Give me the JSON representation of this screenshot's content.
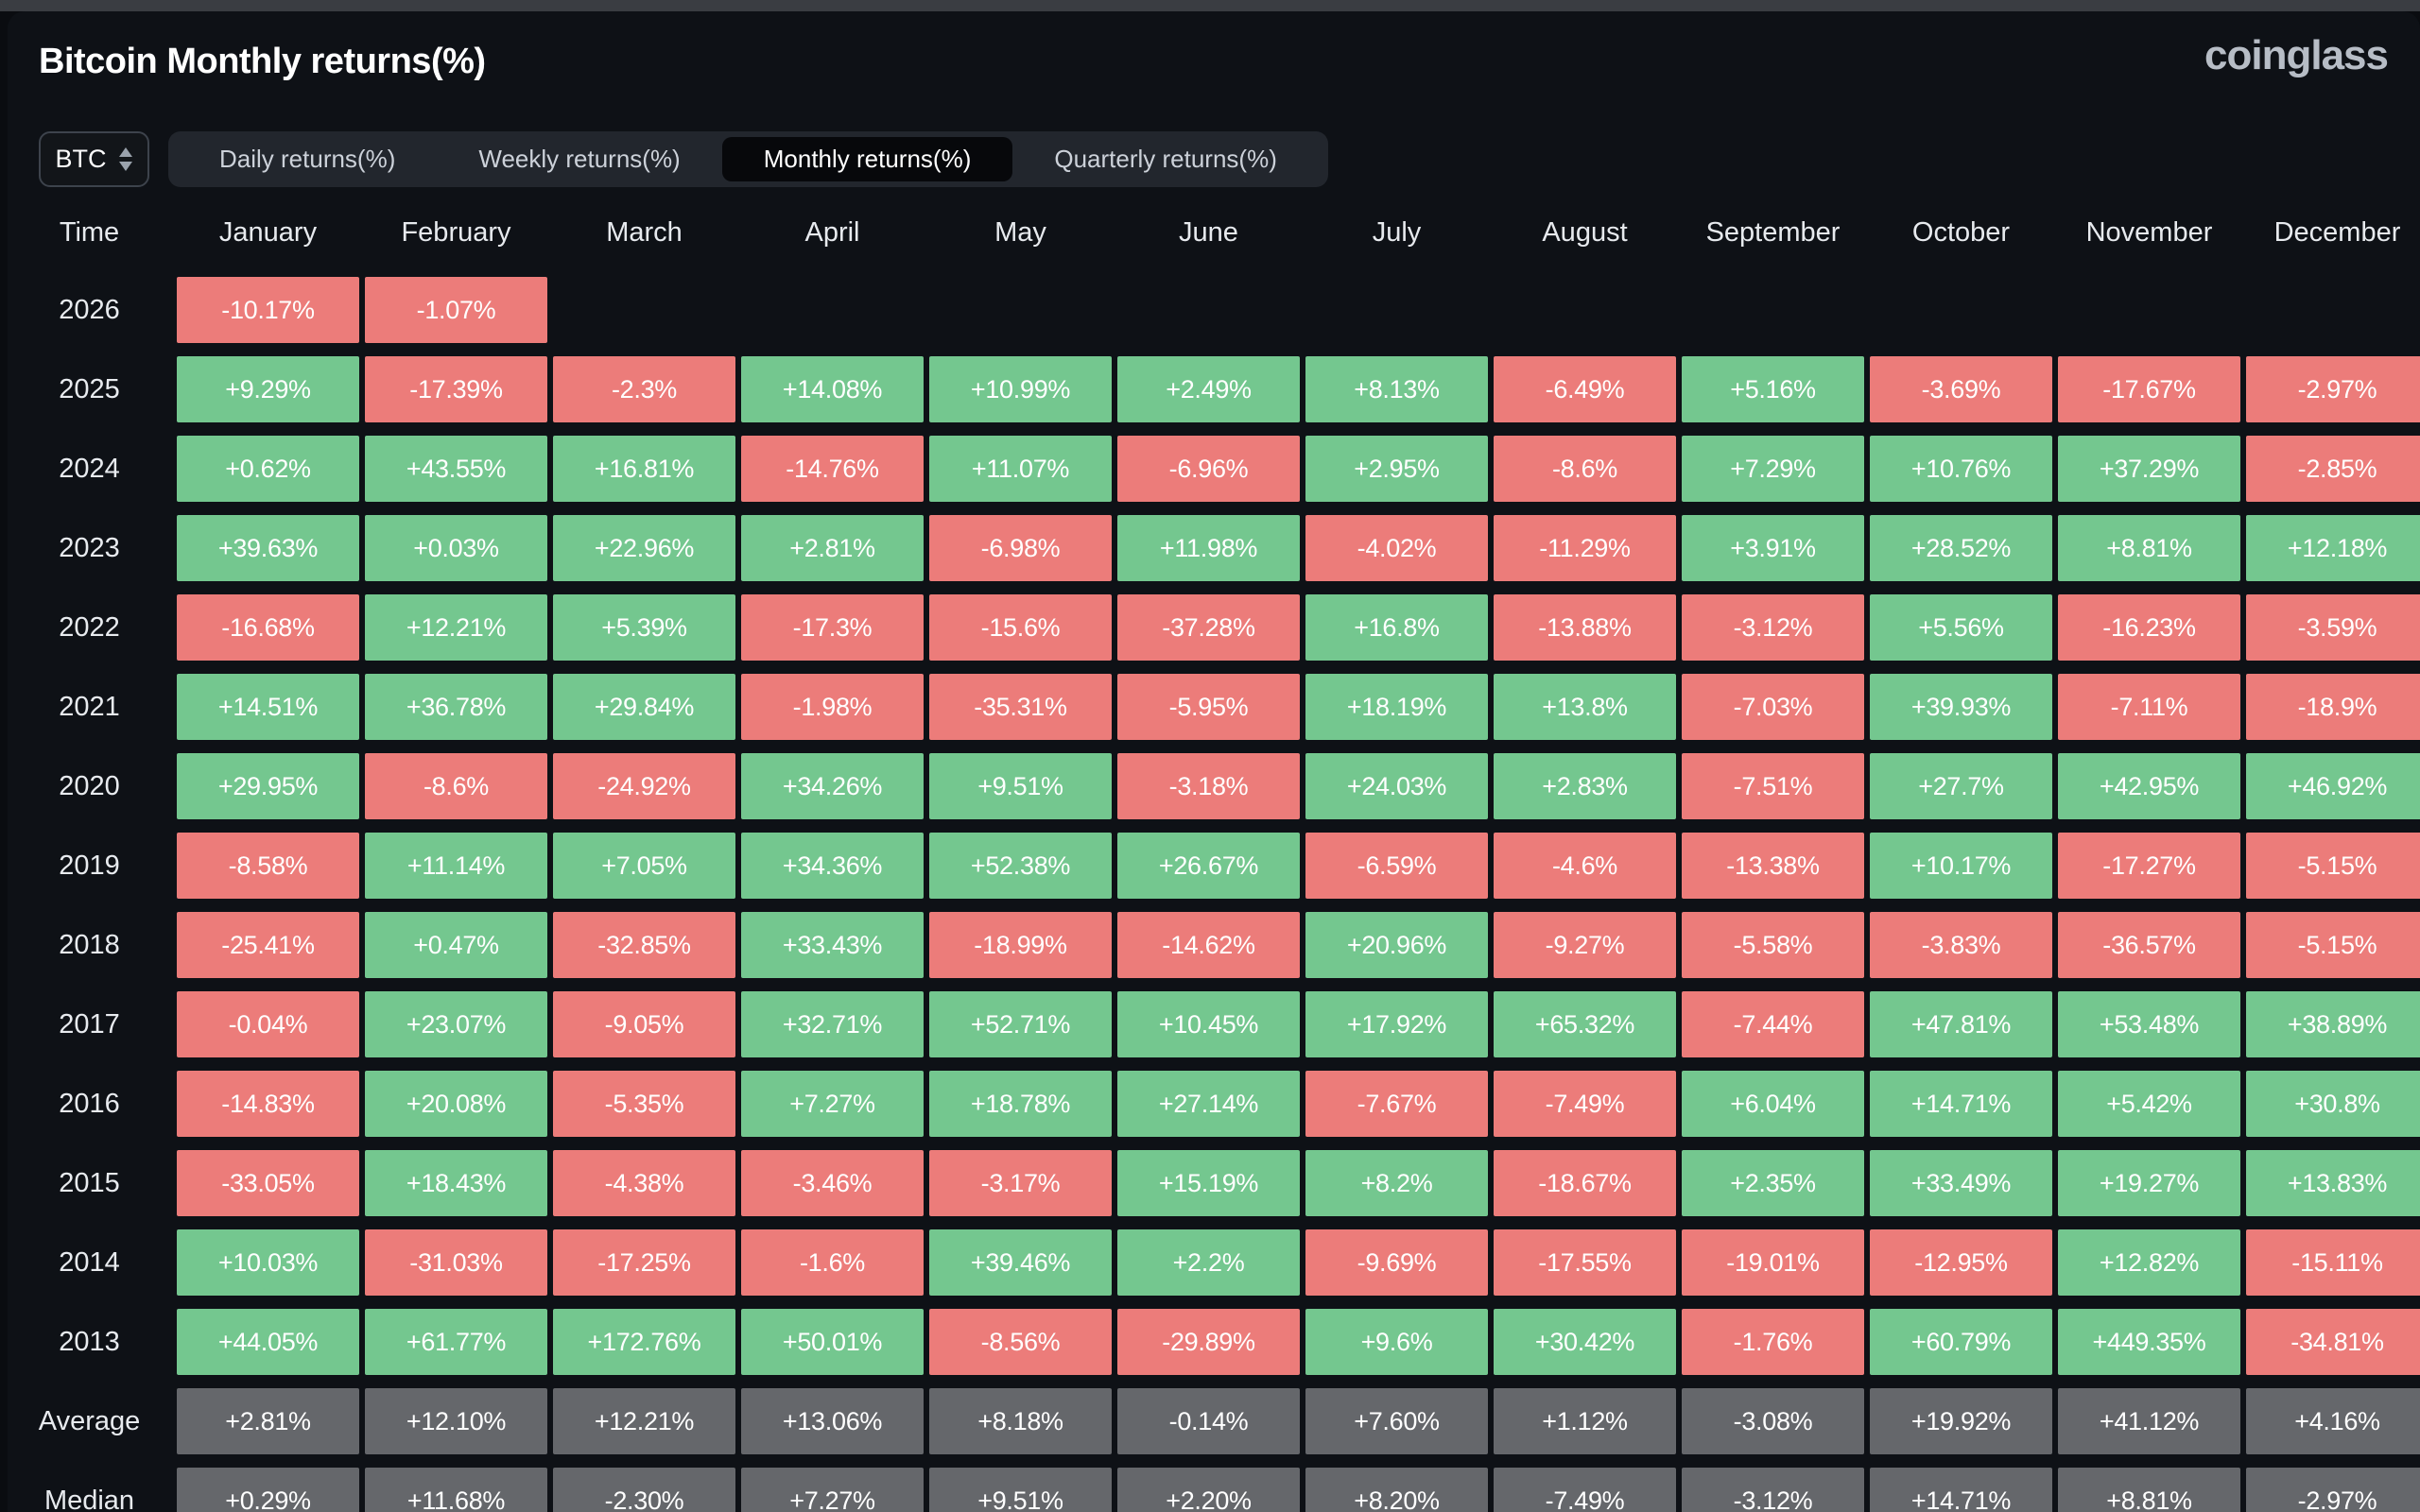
{
  "header": {
    "title": "Bitcoin Monthly returns(%)",
    "logo": "coinglass"
  },
  "controls": {
    "symbol": "BTC",
    "symbol_icon": "updown-chevron",
    "tabs": [
      {
        "label": "Daily returns(%)",
        "selected": false
      },
      {
        "label": "Weekly returns(%)",
        "selected": false
      },
      {
        "label": "Monthly returns(%)",
        "selected": true
      },
      {
        "label": "Quarterly returns(%)",
        "selected": false
      }
    ]
  },
  "colors": {
    "positive": "#74c78f",
    "negative": "#ec7c7a",
    "summary": "#65676b",
    "background": "#0e1116"
  },
  "table": {
    "columns": [
      "Time",
      "January",
      "February",
      "March",
      "April",
      "May",
      "June",
      "July",
      "August",
      "September",
      "October",
      "November",
      "December"
    ],
    "rows": [
      {
        "label": "2026",
        "type": "year",
        "values": [
          "-10.17%",
          "-1.07%"
        ]
      },
      {
        "label": "2025",
        "type": "year",
        "values": [
          "+9.29%",
          "-17.39%",
          "-2.3%",
          "+14.08%",
          "+10.99%",
          "+2.49%",
          "+8.13%",
          "-6.49%",
          "+5.16%",
          "-3.69%",
          "-17.67%",
          "-2.97%"
        ]
      },
      {
        "label": "2024",
        "type": "year",
        "values": [
          "+0.62%",
          "+43.55%",
          "+16.81%",
          "-14.76%",
          "+11.07%",
          "-6.96%",
          "+2.95%",
          "-8.6%",
          "+7.29%",
          "+10.76%",
          "+37.29%",
          "-2.85%"
        ]
      },
      {
        "label": "2023",
        "type": "year",
        "values": [
          "+39.63%",
          "+0.03%",
          "+22.96%",
          "+2.81%",
          "-6.98%",
          "+11.98%",
          "-4.02%",
          "-11.29%",
          "+3.91%",
          "+28.52%",
          "+8.81%",
          "+12.18%"
        ]
      },
      {
        "label": "2022",
        "type": "year",
        "values": [
          "-16.68%",
          "+12.21%",
          "+5.39%",
          "-17.3%",
          "-15.6%",
          "-37.28%",
          "+16.8%",
          "-13.88%",
          "-3.12%",
          "+5.56%",
          "-16.23%",
          "-3.59%"
        ]
      },
      {
        "label": "2021",
        "type": "year",
        "values": [
          "+14.51%",
          "+36.78%",
          "+29.84%",
          "-1.98%",
          "-35.31%",
          "-5.95%",
          "+18.19%",
          "+13.8%",
          "-7.03%",
          "+39.93%",
          "-7.11%",
          "-18.9%"
        ]
      },
      {
        "label": "2020",
        "type": "year",
        "values": [
          "+29.95%",
          "-8.6%",
          "-24.92%",
          "+34.26%",
          "+9.51%",
          "-3.18%",
          "+24.03%",
          "+2.83%",
          "-7.51%",
          "+27.7%",
          "+42.95%",
          "+46.92%"
        ]
      },
      {
        "label": "2019",
        "type": "year",
        "values": [
          "-8.58%",
          "+11.14%",
          "+7.05%",
          "+34.36%",
          "+52.38%",
          "+26.67%",
          "-6.59%",
          "-4.6%",
          "-13.38%",
          "+10.17%",
          "-17.27%",
          "-5.15%"
        ]
      },
      {
        "label": "2018",
        "type": "year",
        "values": [
          "-25.41%",
          "+0.47%",
          "-32.85%",
          "+33.43%",
          "-18.99%",
          "-14.62%",
          "+20.96%",
          "-9.27%",
          "-5.58%",
          "-3.83%",
          "-36.57%",
          "-5.15%"
        ]
      },
      {
        "label": "2017",
        "type": "year",
        "values": [
          "-0.04%",
          "+23.07%",
          "-9.05%",
          "+32.71%",
          "+52.71%",
          "+10.45%",
          "+17.92%",
          "+65.32%",
          "-7.44%",
          "+47.81%",
          "+53.48%",
          "+38.89%"
        ]
      },
      {
        "label": "2016",
        "type": "year",
        "values": [
          "-14.83%",
          "+20.08%",
          "-5.35%",
          "+7.27%",
          "+18.78%",
          "+27.14%",
          "-7.67%",
          "-7.49%",
          "+6.04%",
          "+14.71%",
          "+5.42%",
          "+30.8%"
        ]
      },
      {
        "label": "2015",
        "type": "year",
        "values": [
          "-33.05%",
          "+18.43%",
          "-4.38%",
          "-3.46%",
          "-3.17%",
          "+15.19%",
          "+8.2%",
          "-18.67%",
          "+2.35%",
          "+33.49%",
          "+19.27%",
          "+13.83%"
        ]
      },
      {
        "label": "2014",
        "type": "year",
        "values": [
          "+10.03%",
          "-31.03%",
          "-17.25%",
          "-1.6%",
          "+39.46%",
          "+2.2%",
          "-9.69%",
          "-17.55%",
          "-19.01%",
          "-12.95%",
          "+12.82%",
          "-15.11%"
        ]
      },
      {
        "label": "2013",
        "type": "year",
        "values": [
          "+44.05%",
          "+61.77%",
          "+172.76%",
          "+50.01%",
          "-8.56%",
          "-29.89%",
          "+9.6%",
          "+30.42%",
          "-1.76%",
          "+60.79%",
          "+449.35%",
          "-34.81%"
        ]
      },
      {
        "label": "Average",
        "type": "summary",
        "values": [
          "+2.81%",
          "+12.10%",
          "+12.21%",
          "+13.06%",
          "+8.18%",
          "-0.14%",
          "+7.60%",
          "+1.12%",
          "-3.08%",
          "+19.92%",
          "+41.12%",
          "+4.16%"
        ]
      },
      {
        "label": "Median",
        "type": "summary",
        "values": [
          "+0.29%",
          "+11.68%",
          "-2.30%",
          "+7.27%",
          "+9.51%",
          "+2.20%",
          "+8.20%",
          "-7.49%",
          "-3.12%",
          "+14.71%",
          "+8.81%",
          "-2.97%"
        ]
      }
    ]
  }
}
